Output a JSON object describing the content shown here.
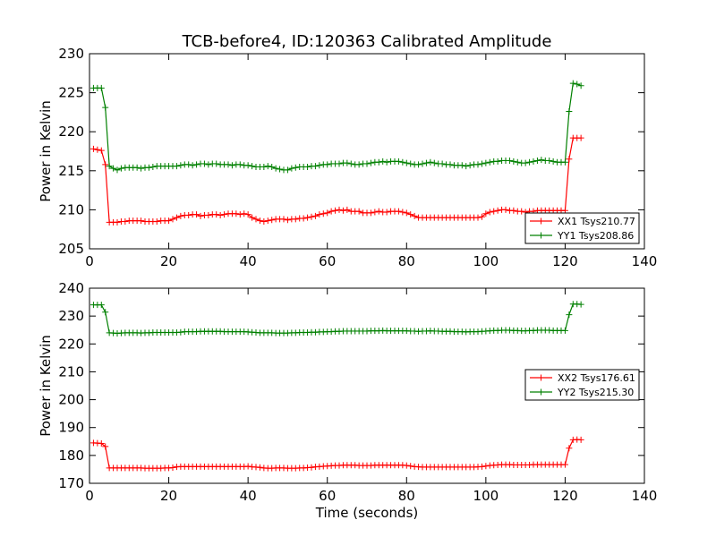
{
  "title": "TCB-before4, ID:120363 Calibrated Amplitude",
  "chart_data": [
    {
      "type": "line",
      "title": "TCB-before4, ID:120363 Calibrated Amplitude",
      "xlabel": "",
      "ylabel": "Power in Kelvin",
      "xlim": [
        0,
        140
      ],
      "ylim": [
        205,
        230
      ],
      "xticks": [
        0,
        20,
        40,
        60,
        80,
        100,
        120,
        140
      ],
      "yticks": [
        205,
        210,
        215,
        220,
        225,
        230
      ],
      "grid": false,
      "legend_position": "lower-right",
      "x": [
        0,
        1,
        2,
        3,
        4,
        5,
        6,
        7,
        8,
        9,
        10,
        11,
        12,
        13,
        14,
        15,
        16,
        17,
        18,
        19,
        20,
        21,
        22,
        23,
        24,
        25,
        26,
        27,
        28,
        29,
        30,
        31,
        32,
        33,
        34,
        35,
        36,
        37,
        38,
        39,
        40,
        41,
        42,
        43,
        44,
        45,
        46,
        47,
        48,
        49,
        50,
        51,
        52,
        53,
        54,
        55,
        56,
        57,
        58,
        59,
        60,
        61,
        62,
        63,
        64,
        65,
        66,
        67,
        68,
        69,
        70,
        71,
        72,
        73,
        74,
        75,
        76,
        77,
        78,
        79,
        80,
        81,
        82,
        83,
        84,
        85,
        86,
        87,
        88,
        89,
        90,
        91,
        92,
        93,
        94,
        95,
        96,
        97,
        98,
        99,
        100,
        101,
        102,
        103,
        104,
        105,
        106,
        107,
        108,
        109,
        110,
        111,
        112,
        113,
        114,
        115,
        116,
        117,
        118,
        119,
        120,
        121,
        122,
        123,
        124
      ],
      "series": [
        {
          "name": "XX1 Tsys210.77",
          "color": "#ff0000",
          "values": [
            null,
            217.8,
            217.7,
            217.6,
            215.8,
            208.4,
            208.4,
            208.4,
            208.5,
            208.5,
            208.6,
            208.6,
            208.6,
            208.6,
            208.5,
            208.5,
            208.5,
            208.5,
            208.6,
            208.6,
            208.6,
            208.8,
            209.0,
            209.2,
            209.3,
            209.3,
            209.4,
            209.4,
            209.2,
            209.3,
            209.3,
            209.4,
            209.4,
            209.3,
            209.4,
            209.5,
            209.5,
            209.5,
            209.4,
            209.5,
            209.4,
            209.0,
            208.8,
            208.6,
            208.5,
            208.6,
            208.7,
            208.8,
            208.8,
            208.8,
            208.7,
            208.8,
            208.8,
            208.9,
            208.9,
            209.0,
            209.1,
            209.2,
            209.4,
            209.5,
            209.6,
            209.8,
            209.9,
            210.0,
            209.9,
            210.0,
            209.8,
            209.8,
            209.8,
            209.6,
            209.6,
            209.6,
            209.7,
            209.8,
            209.7,
            209.7,
            209.8,
            209.8,
            209.8,
            209.7,
            209.6,
            209.4,
            209.2,
            209.0,
            209.0,
            209.0,
            209.0,
            209.0,
            209.0,
            209.0,
            209.0,
            209.0,
            209.0,
            209.0,
            209.0,
            209.0,
            209.0,
            209.0,
            209.0,
            209.1,
            209.5,
            209.7,
            209.8,
            209.9,
            210.0,
            210.0,
            209.9,
            209.9,
            209.8,
            209.8,
            209.7,
            209.8,
            209.8,
            209.9,
            209.9,
            209.9,
            209.9,
            209.9,
            209.9,
            209.9,
            209.9,
            216.5,
            219.2,
            219.2,
            219.2
          ]
        },
        {
          "name": "YY1 Tsys208.86",
          "color": "#008000",
          "values": [
            null,
            225.6,
            225.6,
            225.6,
            223.1,
            215.6,
            215.3,
            215.1,
            215.3,
            215.4,
            215.4,
            215.4,
            215.4,
            215.3,
            215.4,
            215.4,
            215.5,
            215.6,
            215.6,
            215.6,
            215.6,
            215.6,
            215.6,
            215.7,
            215.8,
            215.8,
            215.7,
            215.8,
            215.9,
            215.9,
            215.8,
            215.9,
            215.9,
            215.8,
            215.8,
            215.8,
            215.7,
            215.8,
            215.8,
            215.7,
            215.7,
            215.6,
            215.5,
            215.5,
            215.5,
            215.6,
            215.5,
            215.3,
            215.2,
            215.1,
            215.1,
            215.3,
            215.4,
            215.5,
            215.5,
            215.5,
            215.6,
            215.6,
            215.7,
            215.8,
            215.8,
            215.9,
            215.9,
            215.9,
            216.0,
            216.0,
            215.9,
            215.8,
            215.8,
            215.9,
            215.9,
            216.0,
            216.1,
            216.1,
            216.2,
            216.1,
            216.2,
            216.2,
            216.2,
            216.1,
            216.0,
            215.9,
            215.8,
            215.8,
            215.9,
            216.0,
            216.1,
            216.0,
            215.9,
            215.9,
            215.8,
            215.8,
            215.7,
            215.7,
            215.7,
            215.6,
            215.7,
            215.8,
            215.8,
            215.9,
            216.0,
            216.1,
            216.2,
            216.2,
            216.3,
            216.3,
            216.3,
            216.2,
            216.1,
            216.0,
            216.0,
            216.1,
            216.2,
            216.3,
            216.4,
            216.3,
            216.3,
            216.2,
            216.1,
            216.1,
            216.1,
            222.6,
            226.2,
            226.1,
            225.9
          ]
        }
      ]
    },
    {
      "type": "line",
      "title": "",
      "xlabel": "Time (seconds)",
      "ylabel": "Power in Kelvin",
      "xlim": [
        0,
        140
      ],
      "ylim": [
        170,
        240
      ],
      "xticks": [
        0,
        20,
        40,
        60,
        80,
        100,
        120,
        140
      ],
      "yticks": [
        170,
        180,
        190,
        200,
        210,
        220,
        230,
        240
      ],
      "grid": false,
      "legend_position": "center-right",
      "x": [
        0,
        1,
        2,
        3,
        4,
        5,
        6,
        7,
        8,
        9,
        10,
        11,
        12,
        13,
        14,
        15,
        16,
        17,
        18,
        19,
        20,
        21,
        22,
        23,
        24,
        25,
        26,
        27,
        28,
        29,
        30,
        31,
        32,
        33,
        34,
        35,
        36,
        37,
        38,
        39,
        40,
        41,
        42,
        43,
        44,
        45,
        46,
        47,
        48,
        49,
        50,
        51,
        52,
        53,
        54,
        55,
        56,
        57,
        58,
        59,
        60,
        61,
        62,
        63,
        64,
        65,
        66,
        67,
        68,
        69,
        70,
        71,
        72,
        73,
        74,
        75,
        76,
        77,
        78,
        79,
        80,
        81,
        82,
        83,
        84,
        85,
        86,
        87,
        88,
        89,
        90,
        91,
        92,
        93,
        94,
        95,
        96,
        97,
        98,
        99,
        100,
        101,
        102,
        103,
        104,
        105,
        106,
        107,
        108,
        109,
        110,
        111,
        112,
        113,
        114,
        115,
        116,
        117,
        118,
        119,
        120,
        121,
        122,
        123,
        124
      ],
      "series": [
        {
          "name": "XX2 Tsys176.61",
          "color": "#ff0000",
          "values": [
            null,
            184.5,
            184.4,
            184.3,
            183.2,
            175.5,
            175.5,
            175.5,
            175.5,
            175.5,
            175.5,
            175.5,
            175.5,
            175.5,
            175.4,
            175.4,
            175.4,
            175.4,
            175.4,
            175.5,
            175.5,
            175.6,
            175.9,
            176.0,
            176.0,
            176.0,
            176.0,
            176.0,
            176.0,
            176.0,
            176.0,
            176.0,
            176.0,
            176.0,
            176.0,
            176.0,
            176.0,
            176.0,
            176.0,
            176.0,
            176.1,
            175.9,
            175.8,
            175.7,
            175.5,
            175.4,
            175.4,
            175.5,
            175.5,
            175.5,
            175.4,
            175.4,
            175.4,
            175.5,
            175.5,
            175.6,
            175.7,
            175.9,
            176.0,
            176.1,
            176.2,
            176.3,
            176.4,
            176.4,
            176.5,
            176.5,
            176.5,
            176.5,
            176.4,
            176.4,
            176.4,
            176.4,
            176.5,
            176.5,
            176.5,
            176.5,
            176.5,
            176.5,
            176.5,
            176.5,
            176.4,
            176.2,
            176.0,
            175.9,
            175.8,
            175.8,
            175.8,
            175.8,
            175.8,
            175.8,
            175.8,
            175.8,
            175.8,
            175.8,
            175.8,
            175.8,
            175.8,
            175.8,
            175.9,
            176.0,
            176.2,
            176.4,
            176.5,
            176.6,
            176.7,
            176.7,
            176.7,
            176.6,
            176.6,
            176.6,
            176.6,
            176.6,
            176.7,
            176.7,
            176.7,
            176.7,
            176.7,
            176.7,
            176.7,
            176.7,
            176.7,
            182.6,
            185.6,
            185.7,
            185.6
          ]
        },
        {
          "name": "YY2 Tsys215.30",
          "color": "#008000",
          "values": [
            null,
            234.0,
            234.0,
            234.0,
            231.4,
            224.0,
            223.9,
            223.8,
            223.9,
            224.0,
            224.0,
            224.0,
            224.0,
            223.9,
            224.0,
            224.0,
            224.1,
            224.1,
            224.1,
            224.1,
            224.1,
            224.1,
            224.1,
            224.2,
            224.4,
            224.4,
            224.4,
            224.4,
            224.5,
            224.5,
            224.5,
            224.5,
            224.5,
            224.5,
            224.4,
            224.4,
            224.4,
            224.4,
            224.4,
            224.4,
            224.3,
            224.2,
            224.1,
            224.0,
            224.0,
            224.0,
            224.0,
            223.9,
            223.9,
            223.9,
            223.9,
            224.0,
            224.0,
            224.1,
            224.1,
            224.1,
            224.2,
            224.2,
            224.3,
            224.3,
            224.4,
            224.4,
            224.5,
            224.5,
            224.6,
            224.6,
            224.6,
            224.6,
            224.6,
            224.6,
            224.6,
            224.7,
            224.7,
            224.7,
            224.8,
            224.7,
            224.7,
            224.7,
            224.7,
            224.7,
            224.7,
            224.6,
            224.6,
            224.5,
            224.6,
            224.6,
            224.7,
            224.6,
            224.6,
            224.5,
            224.5,
            224.5,
            224.4,
            224.4,
            224.4,
            224.3,
            224.4,
            224.4,
            224.4,
            224.5,
            224.6,
            224.7,
            224.8,
            224.8,
            224.9,
            224.9,
            224.9,
            224.8,
            224.8,
            224.7,
            224.7,
            224.8,
            224.8,
            224.9,
            224.9,
            224.9,
            224.9,
            224.8,
            224.8,
            224.8,
            224.8,
            230.5,
            234.3,
            234.3,
            234.2
          ]
        }
      ]
    }
  ]
}
